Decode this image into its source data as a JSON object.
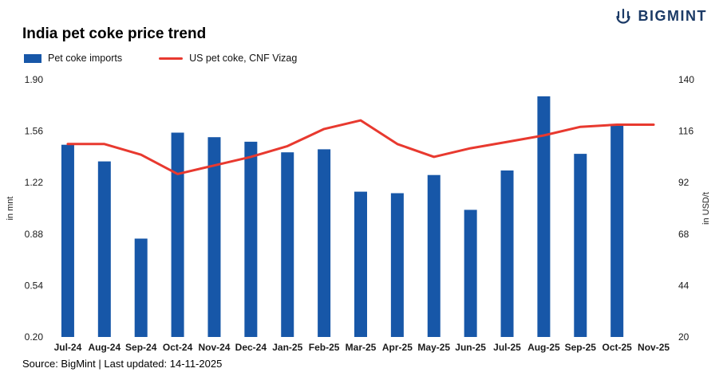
{
  "header": {
    "title": "India pet coke price trend",
    "brand": "BIGMINT"
  },
  "legend": [
    {
      "label": "Pet coke imports",
      "type": "bar",
      "color": "#1757a8"
    },
    {
      "label": "US pet coke, CNF Vizag",
      "type": "line",
      "color": "#e8392f"
    }
  ],
  "footer": {
    "source": "Source: BigMint | Last updated: 14-11-2025"
  },
  "chart_data": {
    "type": "bar",
    "title": "India pet coke price trend",
    "categories": [
      "Jul-24",
      "Aug-24",
      "Sep-24",
      "Oct-24",
      "Nov-24",
      "Dec-24",
      "Jan-25",
      "Feb-25",
      "Mar-25",
      "Apr-25",
      "May-25",
      "Jun-25",
      "Jul-25",
      "Aug-25",
      "Sep-25",
      "Oct-25",
      "Nov-25"
    ],
    "series": [
      {
        "name": "Pet coke imports",
        "type": "bar",
        "axis": "left",
        "color": "#1757a8",
        "values": [
          1.47,
          1.36,
          0.85,
          1.55,
          1.52,
          1.49,
          1.42,
          1.44,
          1.16,
          1.15,
          1.27,
          1.04,
          1.3,
          1.79,
          1.41,
          1.6,
          null
        ]
      },
      {
        "name": "US pet coke, CNF Vizag",
        "type": "line",
        "axis": "right",
        "color": "#e8392f",
        "values": [
          110,
          110,
          105,
          96,
          100,
          104,
          109,
          117,
          121,
          110,
          104,
          108,
          111,
          114,
          118,
          119,
          119
        ]
      }
    ],
    "left_axis": {
      "label": "in mnt",
      "min": 0.2,
      "max": 1.9,
      "tick_labels": [
        "1.90",
        "1.56",
        "1.22",
        "0.88",
        "0.54",
        "0.20"
      ]
    },
    "right_axis": {
      "label": "in USD/t",
      "min": 20,
      "max": 140,
      "tick_labels": [
        "140",
        "116",
        "92",
        "68",
        "44",
        "20"
      ]
    },
    "grid": false,
    "legend_position": "top-left"
  }
}
